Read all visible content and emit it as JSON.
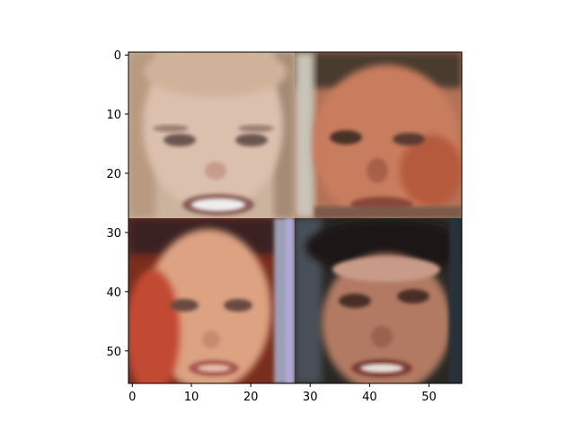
{
  "axes": {
    "x_ticks": [
      "0",
      "10",
      "20",
      "30",
      "40",
      "50"
    ],
    "y_ticks": [
      "0",
      "10",
      "20",
      "30",
      "40",
      "50"
    ],
    "x_range": [
      -0.5,
      55.5
    ],
    "y_range": [
      -0.5,
      55.5
    ],
    "y_inverted": true
  },
  "image": {
    "grid_size": 56,
    "panels": [
      {
        "name": "top-left-face",
        "skin": "#d9b7a3",
        "hair": "#c9a584"
      },
      {
        "name": "top-right-face",
        "skin": "#c7765a",
        "hair": "#5a4030"
      },
      {
        "name": "bottom-left-face",
        "skin": "#d89a78",
        "hair": "#6a2c1c"
      },
      {
        "name": "bottom-right-face",
        "skin": "#b47a62",
        "hair": "#1e1a18"
      }
    ]
  }
}
